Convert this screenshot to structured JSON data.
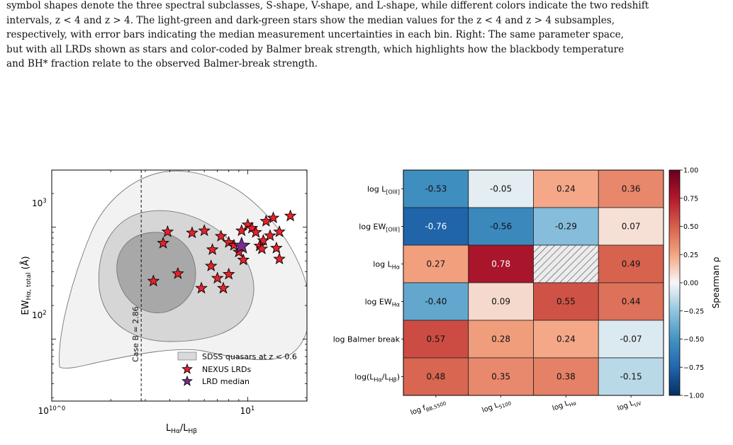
{
  "caption": {
    "lines": [
      "symbol shapes denote the three spectral subclasses, S-shape, V-shape, and L-shape, while different colors indicate the two redshift",
      "intervals, z < 4 and z > 4. The light-green and dark-green stars show the median values for the z < 4 and z > 4 subsamples,",
      "respectively, with error bars indicating the median measurement uncertainties in each bin. Right: The same parameter space,",
      "but with all LRDs shown as stars and color-coded by Balmer break strength, which highlights how the blackbody temperature",
      "and BH* fraction relate to the observed Balmer-break strength."
    ]
  },
  "colors": {
    "star_fill": "#e8222a",
    "median_fill": "#7b2a8a",
    "contour_outer": "#f2f2f2",
    "contour_mid": "#d6d6d6",
    "contour_inner": "#a8a8a8"
  },
  "chart_data": [
    {
      "type": "scatter",
      "xlabel": "L_Hα/L_Hβ",
      "ylabel": "EW_Hα, total (Å)",
      "xscale": "log",
      "yscale": "log",
      "xlim": [
        1,
        20
      ],
      "ylim": [
        28,
        2000
      ],
      "x_ticklabels": [
        "10^0",
        "10^1"
      ],
      "y_ticklabels": [
        "10^2",
        "10^3"
      ],
      "vline": {
        "x": 2.86,
        "label": "Case B = 2.86"
      },
      "legend": {
        "placement": "lower-right",
        "entries": [
          "SDSS quasars at z < 0.6",
          "NEXUS LRDs",
          "LRD median"
        ]
      },
      "series": [
        {
          "name": "NEXUS LRDs",
          "marker": "star",
          "points": [
            [
              3.3,
              330
            ],
            [
              4.4,
              385
            ],
            [
              5.8,
              285
            ],
            [
              3.9,
              910
            ],
            [
              3.7,
              720
            ],
            [
              5.2,
              890
            ],
            [
              6.0,
              930
            ],
            [
              6.6,
              630
            ],
            [
              7.3,
              830
            ],
            [
              6.5,
              450
            ],
            [
              7.0,
              350
            ],
            [
              7.5,
              285
            ],
            [
              8.0,
              380
            ],
            [
              8.0,
              730
            ],
            [
              8.5,
              690
            ],
            [
              9.3,
              930
            ],
            [
              10.0,
              1050
            ],
            [
              10.5,
              980
            ],
            [
              11.0,
              900
            ],
            [
              11.5,
              680
            ],
            [
              12.0,
              760
            ],
            [
              12.4,
              1130
            ],
            [
              13.5,
              1210
            ],
            [
              14.0,
              650
            ],
            [
              13.0,
              840
            ],
            [
              16.5,
              1260
            ],
            [
              14.5,
              910
            ],
            [
              14.5,
              520
            ],
            [
              9.5,
              510
            ],
            [
              9.0,
              600
            ],
            [
              11.8,
              640
            ]
          ]
        },
        {
          "name": "LRD median",
          "marker": "star",
          "points": [
            [
              9.3,
              680
            ]
          ]
        }
      ]
    },
    {
      "type": "heatmap",
      "row_labels": [
        "log L_[OIII]",
        "log EW_[OIII]",
        "log L_Hα",
        "log EW_Hα",
        "log  Balmer break",
        "log(L_Hα/L_Hβ)"
      ],
      "col_labels": [
        "log f_BB,5500",
        "log L_5100",
        "log L_Hα",
        "log L_UV"
      ],
      "values": [
        [
          -0.53,
          -0.05,
          0.24,
          0.36
        ],
        [
          -0.76,
          -0.56,
          -0.29,
          0.07
        ],
        [
          0.27,
          0.78,
          null,
          0.49
        ],
        [
          -0.4,
          0.09,
          0.55,
          0.44
        ],
        [
          0.57,
          0.28,
          0.24,
          -0.07
        ],
        [
          0.48,
          0.35,
          0.38,
          -0.15
        ]
      ],
      "value_labels": [
        [
          "-0.53",
          "-0.05",
          "0.24",
          "0.36"
        ],
        [
          "-0.76",
          "-0.56",
          "-0.29",
          "0.07"
        ],
        [
          "0.27",
          "0.78",
          "",
          "0.49"
        ],
        [
          "-0.40",
          "0.09",
          "0.55",
          "0.44"
        ],
        [
          "0.57",
          "0.28",
          "0.24",
          "-0.07"
        ],
        [
          "0.48",
          "0.35",
          "0.38",
          "-0.15"
        ]
      ],
      "colorbar": {
        "label": "Spearman ρ",
        "range": [
          -1,
          1
        ],
        "ticks": [
          1.0,
          0.75,
          0.5,
          0.25,
          0.0,
          -0.25,
          -0.5,
          -0.75,
          -1.0
        ],
        "tick_labels": [
          "1.00",
          "0.75",
          "0.50",
          "0.25",
          "0.00",
          "−0.25",
          "−0.50",
          "−0.75",
          "−1.00"
        ],
        "colormap": "RdBu_r"
      }
    }
  ]
}
